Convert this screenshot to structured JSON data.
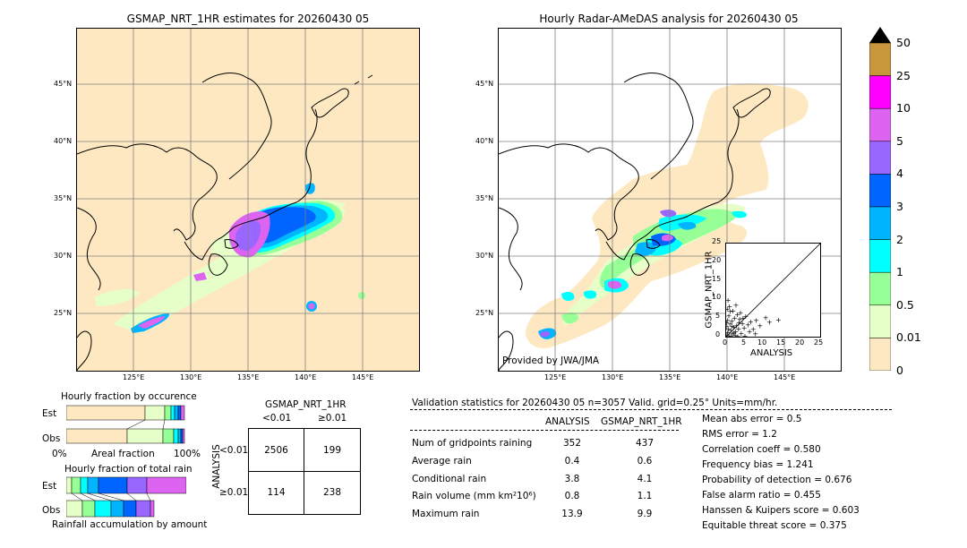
{
  "left_map": {
    "title": "GSMAP_NRT_1HR estimates for 20260430 05",
    "lat_labels": [
      "45°N",
      "40°N",
      "35°N",
      "30°N",
      "25°N"
    ],
    "lon_labels": [
      "125°E",
      "130°E",
      "135°E",
      "140°E",
      "145°E"
    ]
  },
  "right_map": {
    "title": "Hourly Radar-AMeDAS analysis for 20260430 05",
    "lat_labels": [
      "45°N",
      "40°N",
      "35°N",
      "30°N",
      "25°N"
    ],
    "lon_labels": [
      "125°E",
      "130°E",
      "135°E",
      "140°E",
      "145°E"
    ],
    "credit": "Provided by JWA/JMA"
  },
  "inset_scatter": {
    "ylabel": "GSMAP_NRT_1HR",
    "xlabel": "ANALYSIS",
    "ticks": [
      "0",
      "5",
      "10",
      "15",
      "20",
      "25"
    ]
  },
  "colorbar": {
    "labels": [
      "50",
      "25",
      "10",
      "5",
      "4",
      "3",
      "2",
      "1",
      "0.5",
      "0.01",
      "0"
    ],
    "colors": [
      "#c8963c",
      "#ff00ff",
      "#dc64f0",
      "#9966ff",
      "#0064ff",
      "#00b4ff",
      "#00ffff",
      "#96ff96",
      "#e6ffc8",
      "#fde8c2"
    ]
  },
  "fraction_occurrence": {
    "title": "Hourly fraction by occurence",
    "row_est": "Est",
    "row_obs": "Obs",
    "axis_left": "0%",
    "axis_mid": "Areal fraction",
    "axis_right": "100%"
  },
  "fraction_rain": {
    "title": "Hourly fraction of total rain",
    "row_est": "Est",
    "row_obs": "Obs",
    "footer": "Rainfall accumulation by amount"
  },
  "contingency": {
    "title": "GSMAP_NRT_1HR",
    "col_lt": "<0.01",
    "col_ge": "≥0.01",
    "row_axis": "ANALYSIS",
    "row_lt": "<0.01",
    "row_ge": "≥0.01",
    "cells": [
      "2506",
      "199",
      "114",
      "238"
    ]
  },
  "validation": {
    "header": "Validation statistics for 20260430 05  n=3057 Valid. grid=0.25° Units=mm/hr.",
    "col_analysis": "ANALYSIS",
    "col_gsmap": "GSMAP_NRT_1HR",
    "rows": [
      {
        "label": "Num of gridpoints raining",
        "analysis": "352",
        "gsmap": "437"
      },
      {
        "label": "Average rain",
        "analysis": "0.4",
        "gsmap": "0.6"
      },
      {
        "label": "Conditional rain",
        "analysis": "3.8",
        "gsmap": "4.1"
      },
      {
        "label": "Rain volume (mm km²10⁶)",
        "analysis": "0.8",
        "gsmap": "1.1"
      },
      {
        "label": "Maximum rain",
        "analysis": "13.9",
        "gsmap": "9.9"
      }
    ],
    "scores": [
      "Mean abs error =    0.5",
      "RMS error =    1.2",
      "Correlation coeff =  0.580",
      "Frequency bias =  1.241",
      "Probability of detection =  0.676",
      "False alarm ratio =  0.455",
      "Hanssen & Kuipers score =  0.603",
      "Equitable threat score =  0.375"
    ]
  },
  "chart_data": [
    {
      "type": "heatmap",
      "title": "GSMAP_NRT_1HR estimates for 20260430 05",
      "x_ticks": [
        "125°E",
        "130°E",
        "135°E",
        "140°E",
        "145°E"
      ],
      "y_ticks": [
        "45°N",
        "40°N",
        "35°N",
        "30°N",
        "25°N"
      ]
    },
    {
      "type": "heatmap",
      "title": "Hourly Radar-AMeDAS analysis for 20260430 05",
      "x_ticks": [
        "125°E",
        "130°E",
        "135°E",
        "140°E",
        "145°E"
      ],
      "y_ticks": [
        "45°N",
        "40°N",
        "35°N",
        "30°N",
        "25°N"
      ]
    },
    {
      "type": "scatter",
      "xlabel": "ANALYSIS",
      "ylabel": "GSMAP_NRT_1HR",
      "xlim": [
        0,
        25
      ],
      "ylim": [
        0,
        25
      ],
      "points": [
        [
          0.2,
          0.5
        ],
        [
          0.4,
          1.2
        ],
        [
          0.6,
          2.1
        ],
        [
          0.8,
          0.3
        ],
        [
          1.0,
          3.5
        ],
        [
          1.2,
          1.8
        ],
        [
          1.5,
          4.2
        ],
        [
          1.7,
          0.9
        ],
        [
          2.0,
          2.6
        ],
        [
          2.2,
          5.1
        ],
        [
          2.5,
          1.4
        ],
        [
          2.8,
          3.0
        ],
        [
          3.0,
          6.0
        ],
        [
          3.3,
          2.2
        ],
        [
          3.6,
          4.8
        ],
        [
          4.0,
          1.0
        ],
        [
          4.3,
          3.6
        ],
        [
          4.8,
          2.4
        ],
        [
          5.2,
          5.5
        ],
        [
          5.8,
          3.2
        ],
        [
          6.5,
          4.1
        ],
        [
          7.2,
          2.0
        ],
        [
          8.0,
          4.5
        ],
        [
          9.0,
          3.0
        ],
        [
          10.5,
          5.2
        ],
        [
          11.5,
          4.0
        ],
        [
          13.9,
          4.6
        ],
        [
          0.3,
          7.5
        ],
        [
          0.5,
          9.9
        ],
        [
          1.1,
          6.8
        ],
        [
          0.9,
          8.2
        ],
        [
          1.8,
          7.0
        ],
        [
          2.6,
          8.5
        ],
        [
          3.8,
          6.5
        ],
        [
          0.1,
          3.8
        ],
        [
          0.7,
          5.6
        ],
        [
          1.3,
          0.2
        ],
        [
          2.4,
          0.4
        ],
        [
          3.1,
          0.1
        ],
        [
          5.0,
          0.3
        ],
        [
          6.2,
          1.5
        ],
        [
          7.8,
          0.8
        ],
        [
          0.2,
          2.8
        ],
        [
          0.4,
          4.4
        ],
        [
          1.6,
          2.9
        ],
        [
          2.1,
          1.1
        ],
        [
          3.4,
          3.9
        ],
        [
          4.5,
          5.0
        ]
      ]
    },
    {
      "type": "table",
      "title": "GSMAP_NRT_1HR",
      "columns": [
        "<0.01",
        "≥0.01"
      ],
      "rows": [
        "<0.01",
        "≥0.01"
      ],
      "values": [
        [
          2506,
          199
        ],
        [
          114,
          238
        ]
      ]
    }
  ]
}
